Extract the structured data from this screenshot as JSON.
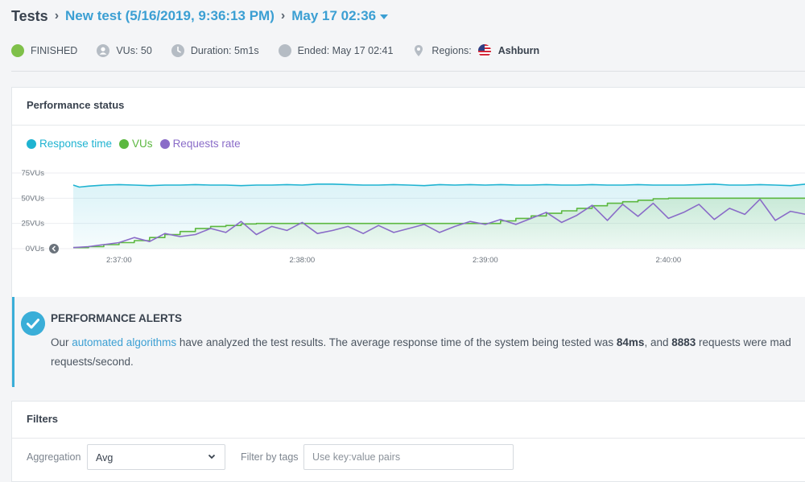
{
  "breadcrumb": {
    "root": "Tests",
    "test_name": "New test (5/16/2019, 9:36:13 PM)",
    "run": "May 17 02:36"
  },
  "status": {
    "state": "FINISHED",
    "vus": "VUs: 50",
    "duration": "Duration: 5m1s",
    "ended": "Ended: May 17 02:41",
    "regions_label": "Regions:",
    "region": "Ashburn"
  },
  "perf_panel": {
    "title": "Performance status",
    "legend": [
      {
        "label": "Response time",
        "color": "#1fb3d1"
      },
      {
        "label": "VUs",
        "color": "#5cb840"
      },
      {
        "label": "Requests rate",
        "color": "#8a6cc8"
      }
    ]
  },
  "chart_data": {
    "type": "line",
    "y_ticks": [
      "75VUs",
      "50VUs",
      "25VUs",
      "0VUs"
    ],
    "y_range": [
      0,
      75
    ],
    "x_ticks": [
      "2:37:00",
      "2:38:00",
      "2:39:00",
      "2:40:00"
    ],
    "x_tick_seconds": [
      0,
      60,
      120,
      180
    ],
    "x_range_seconds": [
      -15,
      225
    ],
    "series": [
      {
        "name": "Response time",
        "color": "#1fb3d1",
        "fill": true,
        "x": [
          -15,
          -13,
          -10,
          -5,
          0,
          5,
          10,
          15,
          20,
          25,
          30,
          35,
          40,
          45,
          50,
          55,
          60,
          65,
          70,
          75,
          80,
          85,
          90,
          95,
          100,
          105,
          110,
          115,
          120,
          125,
          130,
          135,
          140,
          145,
          150,
          155,
          160,
          165,
          170,
          175,
          180,
          185,
          190,
          195,
          200,
          205,
          210,
          215,
          220,
          225
        ],
        "y": [
          63,
          61,
          62,
          63,
          63.5,
          63,
          62.5,
          63,
          63,
          63.5,
          63,
          63,
          62.5,
          63,
          63,
          63.5,
          63,
          64,
          64,
          63.5,
          63,
          63,
          63.5,
          63,
          62.5,
          63.5,
          63,
          63.5,
          63,
          63.5,
          63,
          63,
          63.5,
          63,
          63,
          63.5,
          63,
          63,
          63.5,
          63,
          63,
          63,
          63.5,
          64,
          63,
          63,
          63.5,
          63,
          62.5,
          64
        ]
      },
      {
        "name": "VUs",
        "color": "#5cb840",
        "fill": true,
        "x": [
          -15,
          -10,
          -5,
          0,
          5,
          10,
          15,
          20,
          25,
          30,
          35,
          40,
          45,
          50,
          55,
          60,
          70,
          80,
          90,
          100,
          110,
          120,
          125,
          130,
          135,
          140,
          145,
          150,
          155,
          160,
          165,
          170,
          175,
          180,
          190,
          200,
          210,
          220,
          225
        ],
        "y": [
          1,
          2,
          4,
          6,
          8,
          11,
          14,
          17,
          20,
          22,
          23,
          24.5,
          25,
          25,
          25,
          25,
          25,
          25,
          25,
          25,
          25,
          25,
          27.5,
          30,
          32.5,
          35,
          37.5,
          40,
          42.5,
          45,
          46.5,
          48,
          49.5,
          50,
          50,
          50,
          50,
          50,
          50
        ]
      },
      {
        "name": "Requests rate",
        "color": "#8a6cc8",
        "fill": false,
        "x": [
          -15,
          -10,
          -5,
          0,
          5,
          10,
          15,
          20,
          25,
          30,
          35,
          40,
          45,
          50,
          55,
          60,
          65,
          70,
          75,
          80,
          85,
          90,
          95,
          100,
          105,
          110,
          115,
          120,
          125,
          130,
          135,
          140,
          145,
          150,
          155,
          160,
          165,
          170,
          175,
          180,
          185,
          190,
          195,
          200,
          205,
          210,
          215,
          220,
          225
        ],
        "y": [
          1,
          2,
          4,
          6,
          11,
          7,
          15,
          12,
          14,
          20,
          16,
          27,
          14,
          22,
          18,
          26,
          15,
          18,
          22,
          15,
          23,
          16,
          20,
          24,
          16,
          22,
          27,
          24,
          29,
          24,
          30,
          36,
          26,
          33,
          43,
          28,
          44,
          32,
          45,
          30,
          36,
          44,
          29,
          40,
          34,
          49,
          28,
          37,
          34
        ]
      }
    ]
  },
  "alert": {
    "title": "PERFORMANCE ALERTS",
    "text_before": "Our ",
    "link": "automated algorithms",
    "text_mid": " have analyzed the test results. The average response time of the system being tested was ",
    "avg_response": "84ms",
    "text_and": ", and ",
    "requests": "8883",
    "text_after": " requests were mad",
    "line2": "requests/second."
  },
  "filters": {
    "title": "Filters",
    "aggregation_label": "Aggregation",
    "aggregation_value": "Avg",
    "tags_label": "Filter by tags",
    "tags_placeholder": "Use key:value pairs"
  }
}
